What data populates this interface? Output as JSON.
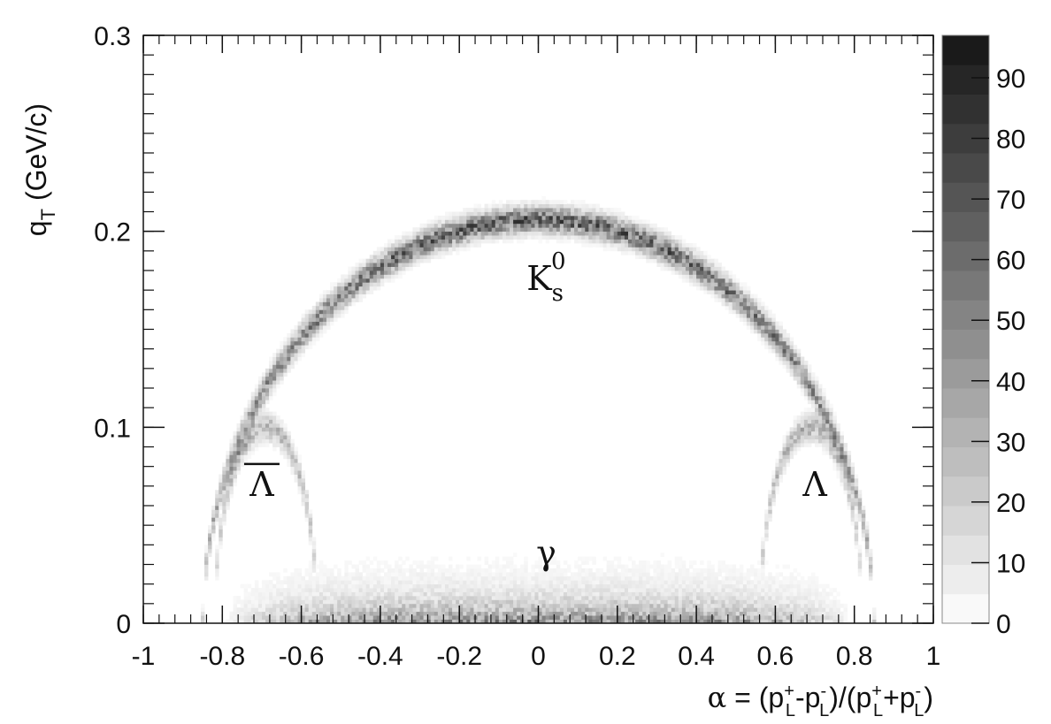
{
  "chart_data": {
    "type": "heatmap",
    "title": "",
    "xlabel": "α = (p_L^+ - p_L^-)/(p_L^+ + p_L^-)",
    "xlabel_parts": {
      "alpha": "α",
      "eq": " = (p",
      "s1": "+",
      "l1": "L",
      "minus": "-p",
      "s2": "-",
      "l2": "L",
      "mid": ")/(p",
      "s3": "+",
      "l3": "L",
      "plus": "+p",
      "s4": "-",
      "l4": "L",
      "close": ")"
    },
    "ylabel": "q_T (GeV/c)",
    "ylabel_parts": {
      "q": "q",
      "sub": "T",
      "unit": " (GeV/c)"
    },
    "xlim": [
      -1,
      1
    ],
    "ylim": [
      0,
      0.3
    ],
    "x_ticks": [
      {
        "value": -1,
        "label": "-1"
      },
      {
        "value": -0.8,
        "label": "-0.8"
      },
      {
        "value": -0.6,
        "label": "-0.6"
      },
      {
        "value": -0.4,
        "label": "-0.4"
      },
      {
        "value": -0.2,
        "label": "-0.2"
      },
      {
        "value": 0,
        "label": "0"
      },
      {
        "value": 0.2,
        "label": "0.2"
      },
      {
        "value": 0.4,
        "label": "0.4"
      },
      {
        "value": 0.6,
        "label": "0.6"
      },
      {
        "value": 0.8,
        "label": "0.8"
      },
      {
        "value": 1,
        "label": "1"
      }
    ],
    "y_ticks": [
      {
        "value": 0,
        "label": "0"
      },
      {
        "value": 0.1,
        "label": "0.1"
      },
      {
        "value": 0.2,
        "label": "0.2"
      },
      {
        "value": 0.3,
        "label": "0.3"
      }
    ],
    "colorbar": {
      "range": [
        0,
        97
      ],
      "ticks": [
        {
          "value": 0,
          "label": "0"
        },
        {
          "value": 10,
          "label": "10"
        },
        {
          "value": 20,
          "label": "20"
        },
        {
          "value": 30,
          "label": "30"
        },
        {
          "value": 40,
          "label": "40"
        },
        {
          "value": 50,
          "label": "50"
        },
        {
          "value": 60,
          "label": "60"
        },
        {
          "value": 70,
          "label": "70"
        },
        {
          "value": 80,
          "label": "80"
        },
        {
          "value": 90,
          "label": "90"
        }
      ],
      "palette": "grayscale"
    },
    "bands": [
      {
        "name": "K0s",
        "type": "arc",
        "center_alpha": 0,
        "half_width_alpha": 0.85,
        "peak_qt": 0.206,
        "peak_intensity": 60
      },
      {
        "name": "Lambda-bar",
        "type": "arc",
        "center_alpha": -0.69,
        "half_width_alpha": 0.13,
        "peak_qt": 0.1,
        "peak_intensity": 30
      },
      {
        "name": "Lambda",
        "type": "arc",
        "center_alpha": 0.69,
        "half_width_alpha": 0.13,
        "peak_qt": 0.1,
        "peak_intensity": 30
      },
      {
        "name": "gamma",
        "type": "band",
        "alpha_range": [
          -0.8,
          0.8
        ],
        "qt_range": [
          0,
          0.025
        ],
        "peak_intensity": 90
      }
    ],
    "annotations": [
      {
        "id": "k0s",
        "text": "K",
        "sub": "s",
        "sup": "0",
        "alpha": 0.02,
        "qt": 0.17
      },
      {
        "id": "lambda-bar",
        "text": "Λ",
        "overline": true,
        "alpha": -0.7,
        "qt": 0.065
      },
      {
        "id": "lambda",
        "text": "Λ",
        "overline": false,
        "alpha": 0.7,
        "qt": 0.065
      },
      {
        "id": "gamma",
        "text": "γ",
        "alpha": 0.02,
        "qt": 0.03
      }
    ],
    "grid": false,
    "legend": "none"
  }
}
